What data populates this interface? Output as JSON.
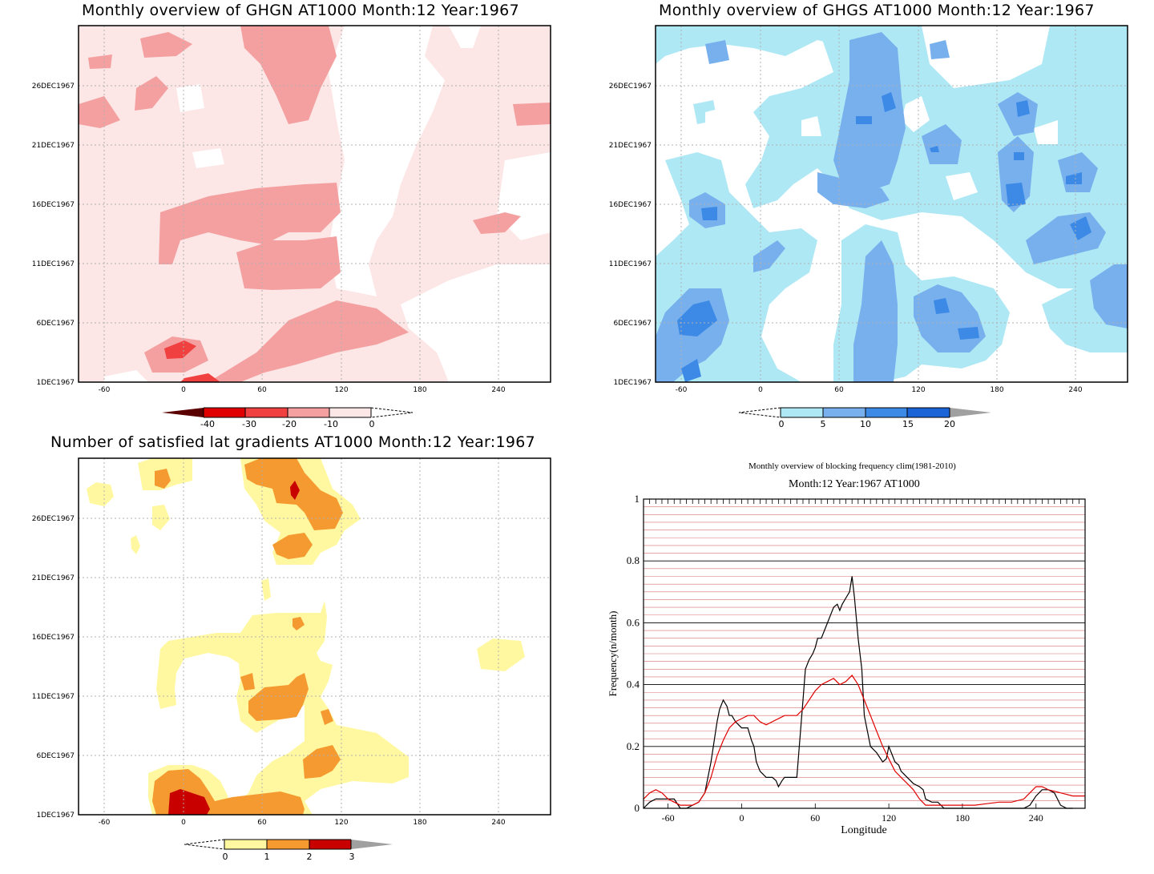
{
  "panels": {
    "ghgn": {
      "title": "Monthly overview of GHGN AT1000 Month:12 Year:1967",
      "x_ticks": [
        "-60",
        "0",
        "60",
        "120",
        "180",
        "240"
      ],
      "y_ticks": [
        "1DEC1967",
        "6DEC1967",
        "11DEC1967",
        "16DEC1967",
        "21DEC1967",
        "26DEC1967"
      ],
      "colorbar": {
        "labels": [
          "-40",
          "-30",
          "-20",
          "-10",
          "0"
        ],
        "colors": [
          "#5a0000",
          "#e00000",
          "#f04040",
          "#f4a0a0",
          "#fce6e6",
          "#ffffff"
        ]
      }
    },
    "ghgs": {
      "title": "Monthly overview of GHGS AT1000 Month:12 Year:1967",
      "x_ticks": [
        "-60",
        "0",
        "60",
        "120",
        "180",
        "240"
      ],
      "y_ticks": [
        "1DEC1967",
        "6DEC1967",
        "11DEC1967",
        "16DEC1967",
        "21DEC1967",
        "26DEC1967"
      ],
      "colorbar": {
        "labels": [
          "0",
          "5",
          "10",
          "15",
          "20"
        ],
        "colors": [
          "#ffffff",
          "#aee8f4",
          "#78b0ee",
          "#3c8ae6",
          "#1a64d8",
          "#a0a0a0"
        ]
      }
    },
    "lat_gradients": {
      "title": "Number of satisfied lat gradients AT1000 Month:12 Year:1967",
      "x_ticks": [
        "-60",
        "0",
        "60",
        "120",
        "180",
        "240"
      ],
      "y_ticks": [
        "1DEC1967",
        "6DEC1967",
        "11DEC1967",
        "16DEC1967",
        "21DEC1967",
        "26DEC1967"
      ],
      "colorbar": {
        "labels": [
          "0",
          "1",
          "2",
          "3"
        ],
        "colors": [
          "#ffffff",
          "#fff8a0",
          "#f59a30",
          "#c80000",
          "#a0a0a0"
        ]
      }
    },
    "blocking": {
      "title": "Monthly overview of blocking frequency clim(1981-2010)",
      "subtitle": "Month:12 Year:1967  AT1000",
      "xlabel": "Longitude",
      "ylabel": "Frequency(n/month)"
    }
  },
  "chart_data": [
    {
      "type": "heatmap",
      "title": "Monthly overview of GHGN AT1000 Month:12 Year:1967",
      "x_range": [
        -75,
        285
      ],
      "y_range": [
        "1DEC1967",
        "31DEC1967"
      ],
      "levels": [
        -40,
        -30,
        -20,
        -10,
        0
      ]
    },
    {
      "type": "heatmap",
      "title": "Monthly overview of GHGS AT1000 Month:12 Year:1967",
      "x_range": [
        -75,
        285
      ],
      "y_range": [
        "1DEC1967",
        "31DEC1967"
      ],
      "levels": [
        0,
        5,
        10,
        15,
        20
      ]
    },
    {
      "type": "heatmap",
      "title": "Number of satisfied lat gradients AT1000 Month:12 Year:1967",
      "x_range": [
        -75,
        285
      ],
      "y_range": [
        "1DEC1967",
        "31DEC1967"
      ],
      "levels": [
        0,
        1,
        2,
        3
      ]
    },
    {
      "type": "line",
      "title": "Monthly overview of blocking frequency clim(1981-2010)",
      "subtitle": "Month:12 Year:1967  AT1000",
      "xlabel": "Longitude",
      "ylabel": "Frequency(n/month)",
      "xlim": [
        -80,
        280
      ],
      "ylim": [
        0,
        1
      ],
      "x_ticks": [
        -60,
        0,
        60,
        120,
        180,
        240
      ],
      "y_ticks": [
        0,
        0.2,
        0.4,
        0.6,
        0.8,
        1
      ],
      "series": [
        {
          "color": "#000000",
          "x": [
            -80,
            -75,
            -70,
            -60,
            -55,
            -50,
            -45,
            -40,
            -35,
            -30,
            -25,
            -20,
            -18,
            -15,
            -12,
            -10,
            -8,
            -5,
            0,
            5,
            8,
            10,
            12,
            15,
            20,
            25,
            28,
            30,
            33,
            35,
            40,
            45,
            50,
            52,
            55,
            58,
            60,
            62,
            65,
            68,
            70,
            72,
            75,
            78,
            80,
            82,
            85,
            88,
            90,
            92,
            95,
            98,
            100,
            105,
            110,
            115,
            118,
            120,
            122,
            125,
            128,
            130,
            135,
            140,
            145,
            148,
            150,
            155,
            160,
            165,
            170,
            175,
            180,
            190,
            200,
            210,
            220,
            230,
            235,
            240,
            245,
            250,
            255,
            260,
            265,
            270
          ],
          "y": [
            0,
            0.02,
            0.03,
            0.03,
            0.03,
            0,
            0,
            0.01,
            0.02,
            0.05,
            0.15,
            0.28,
            0.32,
            0.35,
            0.33,
            0.3,
            0.3,
            0.28,
            0.26,
            0.26,
            0.22,
            0.2,
            0.15,
            0.12,
            0.1,
            0.1,
            0.09,
            0.07,
            0.09,
            0.1,
            0.1,
            0.1,
            0.35,
            0.45,
            0.48,
            0.5,
            0.52,
            0.55,
            0.55,
            0.58,
            0.6,
            0.62,
            0.65,
            0.66,
            0.64,
            0.66,
            0.68,
            0.7,
            0.75,
            0.68,
            0.55,
            0.45,
            0.3,
            0.2,
            0.18,
            0.15,
            0.16,
            0.2,
            0.18,
            0.15,
            0.14,
            0.12,
            0.1,
            0.08,
            0.07,
            0.06,
            0.03,
            0.02,
            0.02,
            0,
            0,
            0,
            0,
            0,
            0,
            0,
            0,
            0,
            0.01,
            0.04,
            0.06,
            0.06,
            0.05,
            0.01,
            0,
            0
          ]
        },
        {
          "color": "#e00000",
          "x": [
            -80,
            -75,
            -70,
            -65,
            -60,
            -55,
            -50,
            -45,
            -40,
            -35,
            -30,
            -25,
            -20,
            -15,
            -10,
            -5,
            0,
            5,
            10,
            15,
            20,
            25,
            30,
            35,
            40,
            45,
            50,
            55,
            60,
            65,
            70,
            75,
            80,
            85,
            90,
            95,
            100,
            105,
            110,
            115,
            120,
            125,
            130,
            135,
            140,
            145,
            150,
            160,
            170,
            180,
            190,
            200,
            210,
            220,
            230,
            235,
            240,
            245,
            250,
            260,
            270,
            280
          ],
          "y": [
            0.03,
            0.05,
            0.06,
            0.05,
            0.03,
            0.02,
            0.01,
            0.01,
            0.01,
            0.02,
            0.05,
            0.1,
            0.17,
            0.22,
            0.26,
            0.28,
            0.29,
            0.3,
            0.3,
            0.28,
            0.27,
            0.28,
            0.29,
            0.3,
            0.3,
            0.3,
            0.32,
            0.35,
            0.38,
            0.4,
            0.41,
            0.42,
            0.4,
            0.41,
            0.43,
            0.4,
            0.35,
            0.3,
            0.25,
            0.2,
            0.16,
            0.12,
            0.1,
            0.08,
            0.06,
            0.03,
            0.01,
            0.01,
            0.01,
            0.01,
            0.01,
            0.015,
            0.02,
            0.02,
            0.03,
            0.05,
            0.07,
            0.07,
            0.06,
            0.05,
            0.04,
            0.04
          ]
        }
      ]
    }
  ]
}
